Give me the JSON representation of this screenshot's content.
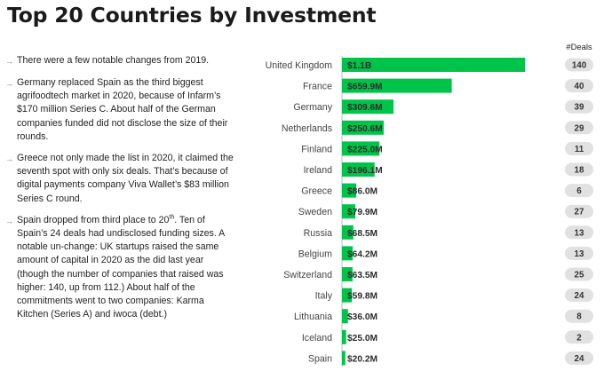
{
  "title": "Top 20 Countries by Investment",
  "colors": {
    "bar": "#00c349",
    "pill": "#e1e1e1",
    "axis": "#bbbbbb"
  },
  "notes": [
    {
      "arrow_icon": "arrow-right-icon",
      "text": "There were a few notable changes from 2019."
    },
    {
      "arrow_icon": "arrow-right-icon",
      "text": "Germany replaced Spain as the third biggest agrifoodtech market in 2020, because of Infarm’s $170 million Series C. About half of the German companies funded did not disclose the size of their rounds."
    },
    {
      "arrow_icon": "arrow-right-icon",
      "text": "Greece not only made the list in 2020, it claimed the seventh spot with only six deals. That’s because of digital payments company Viva Wallet’s $83 million Series C round."
    },
    {
      "arrow_icon": "arrow-right-icon",
      "text_before": "Spain dropped from third place to 20",
      "superscript": "th",
      "text_after": ". Ten of Spain’s 24 deals had undisclosed funding sizes. A notable un-change: UK startups raised the same amount of capital in 2020 as the did last year (though the number of companies that raised was higher: 140, up from 112.) About half of the commitments went to two companies: Karma Kitchen (Series A) and iwoca (debt.)"
    }
  ],
  "chart_data": {
    "type": "bar",
    "orientation": "horizontal",
    "title": "Top 20 Countries by Investment",
    "deals_header": "#Deals",
    "categories": [
      "United Kingdom",
      "France",
      "Germany",
      "Netherlands",
      "Finland",
      "Ireland",
      "Greece",
      "Sweden",
      "Russia",
      "Belgium",
      "Switzerland",
      "Italy",
      "Lithuania",
      "Iceland",
      "Spain"
    ],
    "values": [
      1100,
      659.9,
      309.6,
      250.6,
      225.0,
      196.1,
      86.0,
      79.9,
      68.5,
      64.2,
      63.5,
      59.8,
      36.0,
      25.0,
      20.2
    ],
    "value_labels": [
      "$1.1B",
      "$659.9M",
      "$309.6M",
      "$250.6M",
      "$225.0M",
      "$196.1M",
      "$86.0M",
      "$79.9M",
      "$68.5M",
      "$64.2M",
      "$63.5M",
      "$59.8M",
      "$36.0M",
      "$25.0M",
      "$20.2M"
    ],
    "deals": [
      140,
      40,
      39,
      29,
      11,
      18,
      6,
      27,
      13,
      13,
      25,
      24,
      8,
      2,
      24
    ],
    "value_unit": "$M",
    "xlim": [
      0,
      1100
    ],
    "grid": false
  }
}
